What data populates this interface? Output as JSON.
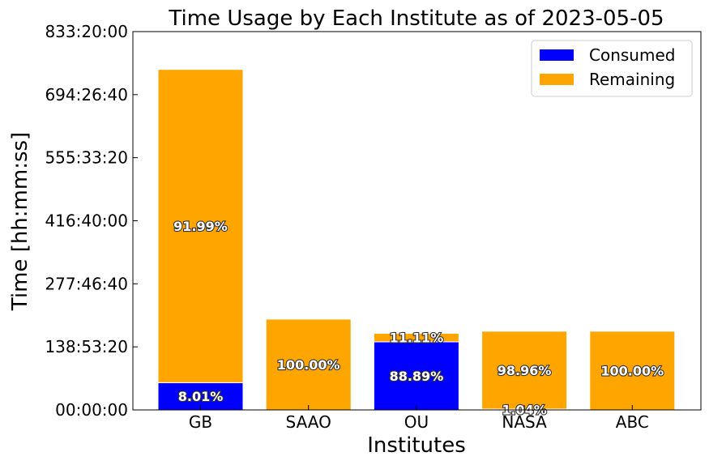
{
  "chart_data": {
    "type": "bar",
    "stacked": true,
    "title": "Time Usage by Each Institute as of 2023-05-05",
    "xlabel": "Institutes",
    "ylabel": "Time [hh:mm:ss]",
    "categories": [
      "GB",
      "SAAO",
      "OU",
      "NASA",
      "ABC"
    ],
    "y_unit": "hours",
    "ylim": [
      0,
      833.3333
    ],
    "yticks": [
      0,
      138.8889,
      277.7778,
      416.6667,
      555.5556,
      694.4444,
      833.3333
    ],
    "ytick_labels": [
      "00:00:00",
      "138:53:20",
      "277:46:40",
      "416:40:00",
      "555:33:20",
      "694:26:40",
      "833:20:00"
    ],
    "series": [
      {
        "name": "Consumed",
        "color": "#0000ff",
        "values": [
          60,
          0,
          150,
          1.8,
          0
        ],
        "labels": [
          "8.01%",
          "",
          "88.89%",
          "1.04%",
          ""
        ]
      },
      {
        "name": "Remaining",
        "color": "#ffa500",
        "values": [
          690,
          200,
          18.75,
          171.6,
          173.4
        ],
        "labels": [
          "91.99%",
          "100.00%",
          "11.11%",
          "98.96%",
          "100.00%"
        ]
      }
    ],
    "legend": {
      "position": "top-right",
      "entries": [
        "Consumed",
        "Remaining"
      ]
    },
    "grid": false
  }
}
